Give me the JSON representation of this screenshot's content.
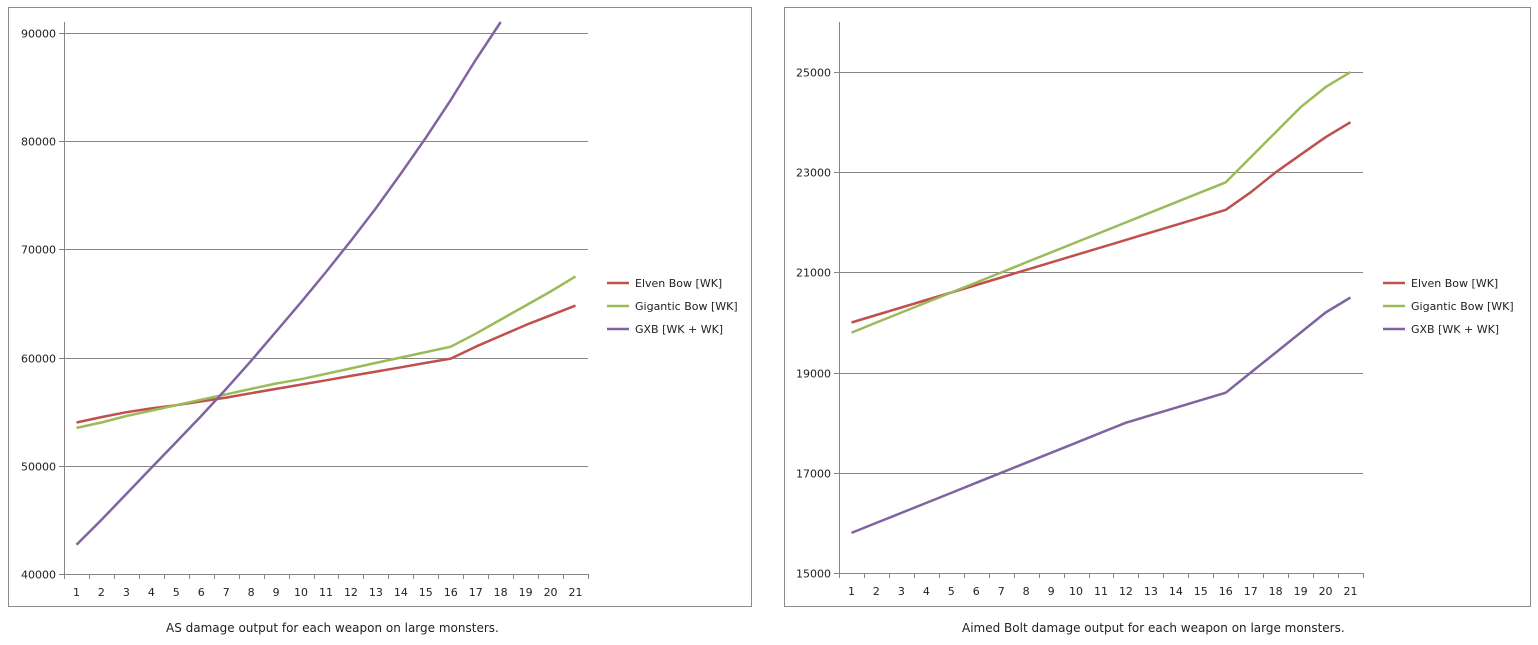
{
  "chart_data": [
    {
      "type": "line",
      "title": "",
      "caption": "AS damage output for each weapon on large monsters.",
      "xlabel": "",
      "ylabel": "",
      "x": [
        1,
        2,
        3,
        4,
        5,
        6,
        7,
        8,
        9,
        10,
        11,
        12,
        13,
        14,
        15,
        16,
        17,
        18,
        19,
        20,
        21
      ],
      "ylim": [
        40000,
        91000
      ],
      "yticks": [
        40000,
        50000,
        60000,
        70000,
        80000,
        90000
      ],
      "grid": true,
      "legend_position": "right",
      "series": [
        {
          "name": "Elven Bow [WK]",
          "color": "#c0504d",
          "values": [
            54000,
            54500,
            54950,
            55300,
            55600,
            55950,
            56300,
            56700,
            57100,
            57500,
            57900,
            58300,
            58700,
            59100,
            59500,
            59900,
            61000,
            62000,
            63000,
            63900,
            64800
          ]
        },
        {
          "name": "Gigantic Bow [WK]",
          "color": "#9bbb59",
          "values": [
            53500,
            54000,
            54600,
            55100,
            55600,
            56100,
            56600,
            57100,
            57600,
            58000,
            58500,
            59000,
            59500,
            60000,
            60500,
            61000,
            62200,
            63500,
            64800,
            66100,
            67500
          ]
        },
        {
          "name": "GXB [WK + WK]",
          "color": "#8064a2",
          "values": [
            42700,
            45000,
            47400,
            49800,
            52200,
            54600,
            57100,
            59700,
            62400,
            65100,
            67900,
            70800,
            73800,
            77000,
            80300,
            83800,
            87500,
            91000,
            null,
            null,
            null
          ]
        }
      ]
    },
    {
      "type": "line",
      "title": "",
      "caption": "Aimed Bolt damage output for each weapon on large monsters.",
      "xlabel": "",
      "ylabel": "",
      "x": [
        1,
        2,
        3,
        4,
        5,
        6,
        7,
        8,
        9,
        10,
        11,
        12,
        13,
        14,
        15,
        16,
        17,
        18,
        19,
        20,
        21
      ],
      "ylim": [
        15000,
        26000
      ],
      "yticks": [
        15000,
        17000,
        19000,
        21000,
        23000,
        25000
      ],
      "grid": true,
      "legend_position": "right",
      "series": [
        {
          "name": "Elven Bow [WK]",
          "color": "#c0504d",
          "values": [
            20000,
            20150,
            20300,
            20450,
            20600,
            20750,
            20900,
            21050,
            21200,
            21350,
            21500,
            21650,
            21800,
            21950,
            22100,
            22250,
            22600,
            23000,
            23350,
            23700,
            24000
          ]
        },
        {
          "name": "Gigantic Bow [WK]",
          "color": "#9bbb59",
          "values": [
            19800,
            20000,
            20200,
            20400,
            20600,
            20800,
            21000,
            21200,
            21400,
            21600,
            21800,
            22000,
            22200,
            22400,
            22600,
            22800,
            23300,
            23800,
            24300,
            24700,
            25000
          ]
        },
        {
          "name": "GXB [WK + WK]",
          "color": "#8064a2",
          "values": [
            15800,
            16000,
            16200,
            16400,
            16600,
            16800,
            17000,
            17200,
            17400,
            17600,
            17800,
            18000,
            18150,
            18300,
            18450,
            18600,
            19000,
            19400,
            19800,
            20200,
            20500
          ]
        }
      ]
    }
  ]
}
